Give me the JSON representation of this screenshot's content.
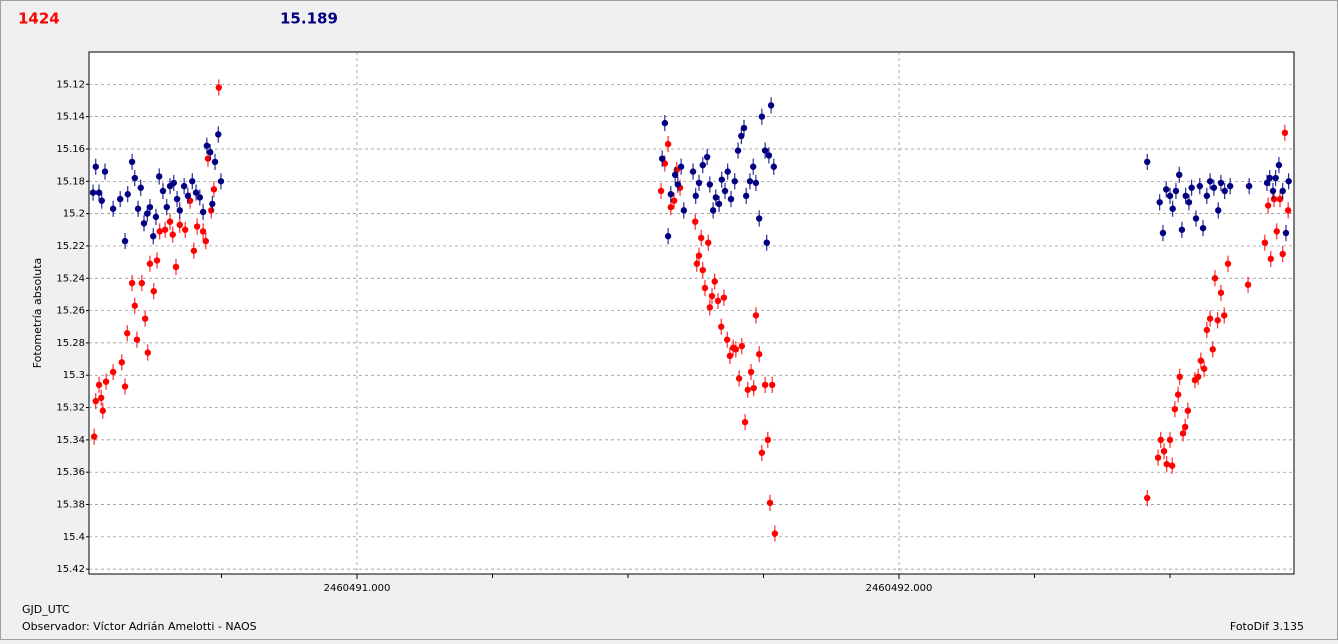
{
  "header": {
    "left": "1424",
    "right": "15.189"
  },
  "footer": {
    "xname": "GJD_UTC",
    "observer": "Observador: Víctor Adrián Amelotti - NAOS",
    "software": "FotoDif 3.135"
  },
  "chart_data": {
    "type": "scatter",
    "ylabel": "Fotometría absoluta",
    "xlim": [
      2460490.5055,
      2460492.7288
    ],
    "ylim": [
      15.423,
      15.1
    ],
    "y_inverted": true,
    "grid": true,
    "xticks": [
      {
        "value": 2460491,
        "label": "2460491.000"
      },
      {
        "value": 2460492,
        "label": "2460492.000"
      }
    ],
    "xminor": [
      2460490.75,
      2460491.25,
      2460491.5,
      2460491.75,
      2460492.25,
      2460492.5
    ],
    "yticks": [
      15.12,
      15.14,
      15.16,
      15.18,
      15.2,
      15.22,
      15.24,
      15.26,
      15.28,
      15.3,
      15.32,
      15.34,
      15.36,
      15.38,
      15.4,
      15.42
    ],
    "series": [
      {
        "color": "#ff0000",
        "yerr": 0.005,
        "x": [
          2460490.515,
          2460490.518,
          2460490.524,
          2460490.528,
          2460490.531,
          2460490.537,
          2460490.55,
          2460490.566,
          2460490.572,
          2460490.576,
          2460490.585,
          2460490.59,
          2460490.594,
          2460490.603,
          2460490.609,
          2460490.614,
          2460490.618,
          2460490.625,
          2460490.631,
          2460490.636,
          2460490.646,
          2460490.655,
          2460490.66,
          2460490.666,
          2460490.673,
          2460490.683,
          2460490.692,
          2460490.699,
          2460490.705,
          2460490.716,
          2460490.721,
          2460490.725,
          2460490.731,
          2460490.736,
          2460490.745,
          2460491.561,
          2460491.568,
          2460491.574,
          2460491.579,
          2460491.585,
          2460491.59,
          2460491.596,
          2460491.624,
          2460491.627,
          2460491.631,
          2460491.635,
          2460491.638,
          2460491.642,
          2460491.648,
          2460491.651,
          2460491.655,
          2460491.66,
          2460491.666,
          2460491.672,
          2460491.677,
          2460491.683,
          2460491.688,
          2460491.694,
          2460491.699,
          2460491.705,
          2460491.71,
          2460491.716,
          2460491.721,
          2460491.727,
          2460491.732,
          2460491.736,
          2460491.742,
          2460491.747,
          2460491.753,
          2460491.758,
          2460491.762,
          2460491.766,
          2460491.771,
          2460492.458,
          2460492.478,
          2460492.483,
          2460492.489,
          2460492.494,
          2460492.5,
          2460492.504,
          2460492.509,
          2460492.515,
          2460492.518,
          2460492.524,
          2460492.528,
          2460492.533,
          2460492.546,
          2460492.552,
          2460492.557,
          2460492.563,
          2460492.568,
          2460492.574,
          2460492.579,
          2460492.583,
          2460492.588,
          2460492.594,
          2460492.6,
          2460492.607,
          2460492.644,
          2460492.675,
          2460492.681,
          2460492.686,
          2460492.692,
          2460492.697,
          2460492.703,
          2460492.708,
          2460492.712,
          2460492.718
        ],
        "values": [
          15.338,
          15.316,
          15.306,
          15.314,
          15.322,
          15.304,
          15.298,
          15.292,
          15.307,
          15.274,
          15.243,
          15.257,
          15.278,
          15.243,
          15.265,
          15.286,
          15.231,
          15.248,
          15.229,
          15.211,
          15.21,
          15.205,
          15.213,
          15.233,
          15.207,
          15.21,
          15.192,
          15.223,
          15.208,
          15.211,
          15.217,
          15.166,
          15.198,
          15.185,
          15.122,
          15.186,
          15.169,
          15.157,
          15.196,
          15.192,
          15.173,
          15.184,
          15.205,
          15.231,
          15.226,
          15.215,
          15.235,
          15.246,
          15.218,
          15.258,
          15.251,
          15.242,
          15.254,
          15.27,
          15.252,
          15.278,
          15.288,
          15.283,
          15.284,
          15.302,
          15.282,
          15.329,
          15.309,
          15.298,
          15.308,
          15.263,
          15.287,
          15.348,
          15.306,
          15.34,
          15.379,
          15.306,
          15.398,
          15.376,
          15.351,
          15.34,
          15.347,
          15.355,
          15.34,
          15.356,
          15.321,
          15.312,
          15.301,
          15.336,
          15.332,
          15.322,
          15.303,
          15.301,
          15.291,
          15.296,
          15.272,
          15.265,
          15.284,
          15.24,
          15.266,
          15.249,
          15.263,
          15.231,
          15.244,
          15.218,
          15.195,
          15.228,
          15.191,
          15.211,
          15.191,
          15.225,
          15.15,
          15.198
        ]
      },
      {
        "color": "#000080",
        "yerr": 0.005,
        "x": [
          2460490.513,
          2460490.518,
          2460490.524,
          2460490.529,
          2460490.535,
          2460490.55,
          2460490.563,
          2460490.572,
          2460490.577,
          2460490.585,
          2460490.59,
          2460490.596,
          2460490.601,
          2460490.607,
          2460490.613,
          2460490.618,
          2460490.624,
          2460490.629,
          2460490.635,
          2460490.642,
          2460490.649,
          2460490.655,
          2460490.662,
          2460490.668,
          2460490.673,
          2460490.681,
          2460490.688,
          2460490.696,
          2460490.703,
          2460490.71,
          2460490.716,
          2460490.723,
          2460490.729,
          2460490.733,
          2460490.738,
          2460490.744,
          2460490.749,
          2460491.563,
          2460491.568,
          2460491.574,
          2460491.579,
          2460491.587,
          2460491.592,
          2460491.598,
          2460491.603,
          2460491.62,
          2460491.625,
          2460491.631,
          2460491.638,
          2460491.646,
          2460491.651,
          2460491.657,
          2460491.662,
          2460491.668,
          2460491.673,
          2460491.679,
          2460491.684,
          2460491.69,
          2460491.697,
          2460491.703,
          2460491.709,
          2460491.714,
          2460491.718,
          2460491.725,
          2460491.731,
          2460491.736,
          2460491.742,
          2460491.747,
          2460491.753,
          2460491.756,
          2460491.76,
          2460491.764,
          2460491.769,
          2460492.458,
          2460492.481,
          2460492.487,
          2460492.493,
          2460492.5,
          2460492.505,
          2460492.511,
          2460492.517,
          2460492.522,
          2460492.529,
          2460492.535,
          2460492.54,
          2460492.548,
          2460492.555,
          2460492.561,
          2460492.568,
          2460492.574,
          2460492.581,
          2460492.589,
          2460492.594,
          2460492.601,
          2460492.611,
          2460492.646,
          2460492.679,
          2460492.684,
          2460492.69,
          2460492.695,
          2460492.701,
          2460492.708,
          2460492.714,
          2460492.719
        ],
        "values": [
          15.187,
          15.171,
          15.187,
          15.192,
          15.174,
          15.197,
          15.191,
          15.217,
          15.188,
          15.168,
          15.178,
          15.197,
          15.184,
          15.206,
          15.2,
          15.196,
          15.214,
          15.202,
          15.177,
          15.186,
          15.196,
          15.183,
          15.181,
          15.191,
          15.198,
          15.183,
          15.189,
          15.18,
          15.187,
          15.19,
          15.199,
          15.158,
          15.162,
          15.194,
          15.168,
          15.151,
          15.18,
          15.166,
          15.144,
          15.214,
          15.188,
          15.176,
          15.182,
          15.171,
          15.198,
          15.174,
          15.189,
          15.181,
          15.17,
          15.165,
          15.182,
          15.198,
          15.19,
          15.194,
          15.179,
          15.186,
          15.174,
          15.191,
          15.18,
          15.161,
          15.152,
          15.147,
          15.189,
          15.18,
          15.171,
          15.181,
          15.203,
          15.14,
          15.161,
          15.218,
          15.164,
          15.133,
          15.171,
          15.168,
          15.193,
          15.212,
          15.185,
          15.189,
          15.197,
          15.186,
          15.176,
          15.21,
          15.189,
          15.193,
          15.184,
          15.203,
          15.183,
          15.209,
          15.189,
          15.18,
          15.184,
          15.198,
          15.181,
          15.186,
          15.183,
          15.183,
          15.181,
          15.178,
          15.186,
          15.178,
          15.17,
          15.186,
          15.212,
          15.18
        ]
      }
    ]
  }
}
